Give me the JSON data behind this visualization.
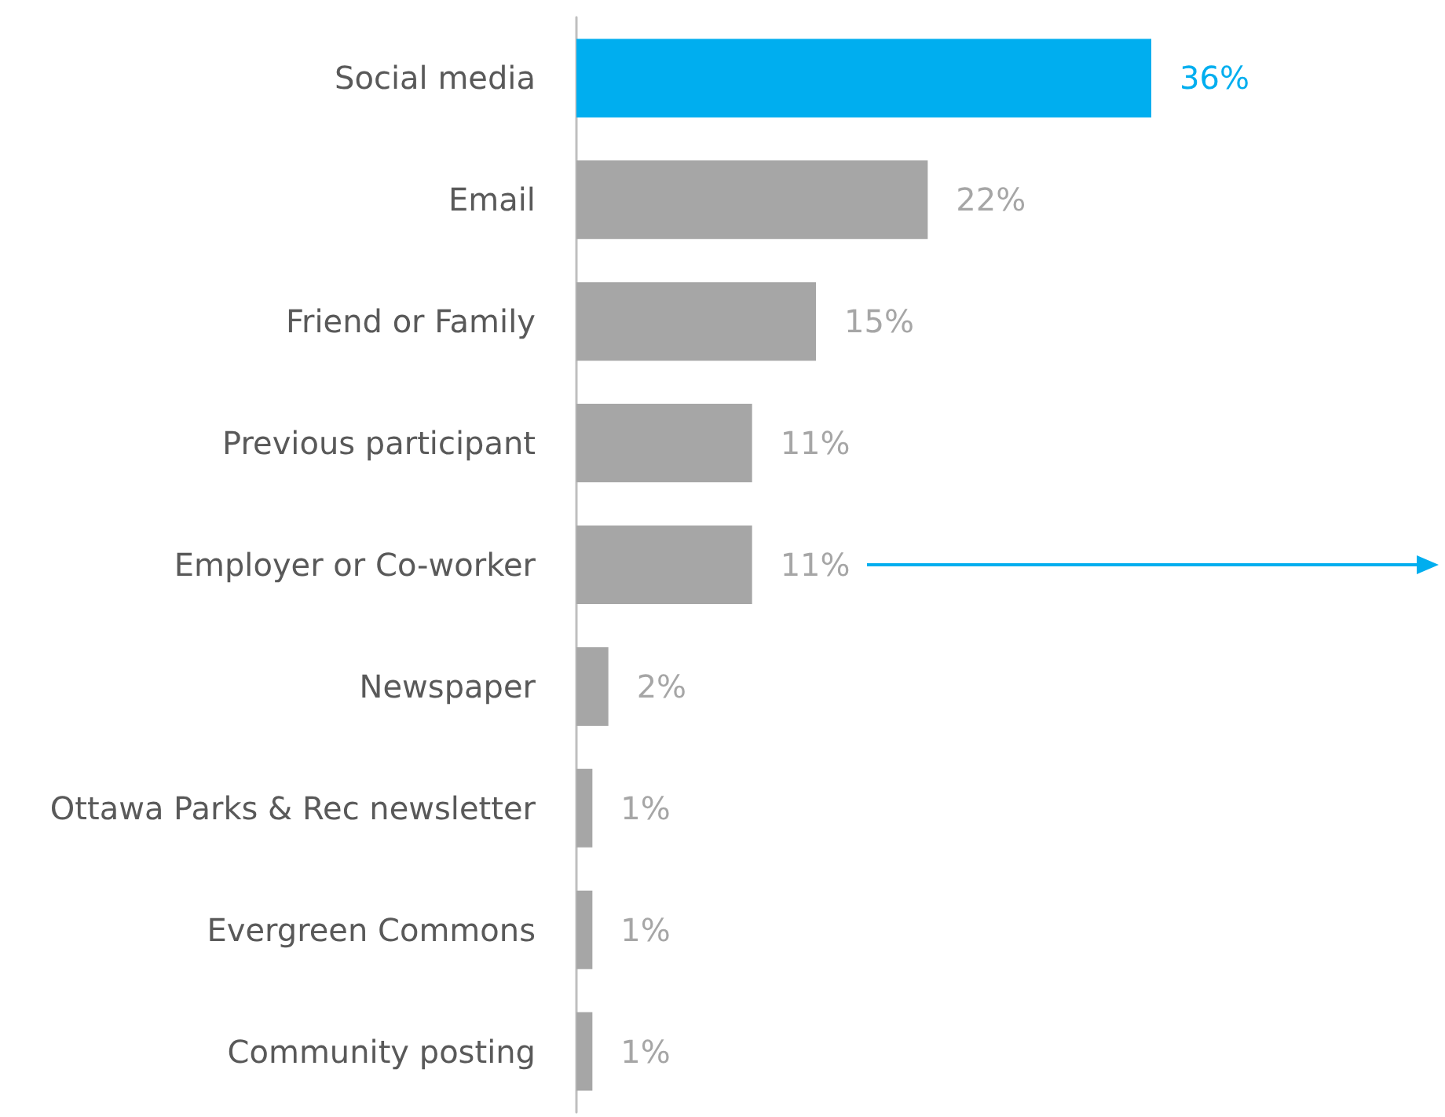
{
  "chart_data": {
    "type": "bar",
    "orientation": "horizontal",
    "tick_labels": "y",
    "categories": [
      "Social media",
      "Email",
      "Friend or Family",
      "Previous participant",
      "Employer or Co-worker",
      "Newspaper",
      "Ottawa Parks & Rec newsletter",
      "Evergreen Commons",
      "Community posting"
    ],
    "values": [
      36,
      22,
      15,
      11,
      11,
      2,
      1,
      1,
      1
    ],
    "colors": [
      "#00aeef",
      "#a6a6a6",
      "#a6a6a6",
      "#a6a6a6",
      "#a6a6a6",
      "#a6a6a6",
      "#a6a6a6",
      "#a6a6a6",
      "#a6a6a6"
    ],
    "value_labels": [
      "36%",
      "22%",
      "15%",
      "11%",
      "11%",
      "2%",
      "1%",
      "1%",
      "1%"
    ]
  }
}
